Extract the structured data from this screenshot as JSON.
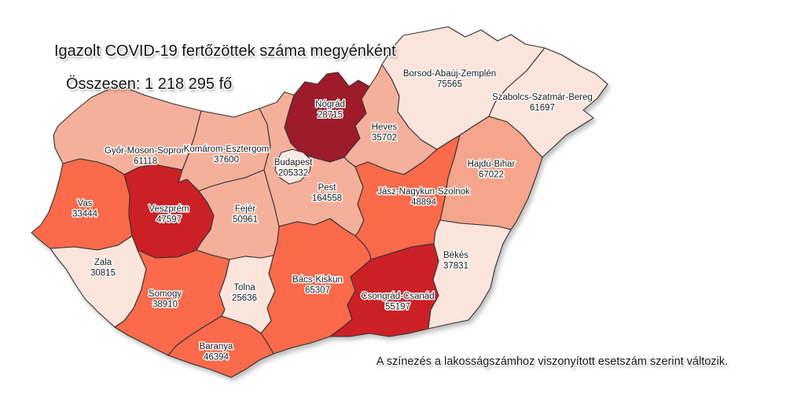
{
  "title": "Igazolt COVID-19 fertőzöttek száma megyénként",
  "total_label": "Összesen: 1 218 295 fő",
  "footnote": "A színezés a lakosságszámhoz viszonyított esetszám szerint változik.",
  "chart_data": {
    "type": "choropleth",
    "region": "Hungary, megyék (counties)",
    "metric": "Igazolt COVID-19 fertőzöttek száma",
    "total_displayed": "1 218 295",
    "legend": "none (color intensity = cases relative to population)",
    "border_color": "#333333",
    "label_color": "#1a1a1a",
    "palette": {
      "t0": "#f9eae4",
      "t1": "#fbe4dc",
      "t2": "#f5b09b",
      "t2b": "#f5a58c",
      "t3": "#fa6a4b",
      "t4": "#cc2027",
      "t5": "#9e1b2c"
    },
    "counties": [
      {
        "id": "gyms",
        "name": "Győr-Moson-Sopron",
        "value": "61118",
        "tier": "t2"
      },
      {
        "id": "ke",
        "name": "Komárom-Esztergom",
        "value": "37600",
        "tier": "t2"
      },
      {
        "id": "vas",
        "name": "Vas",
        "value": "33444",
        "tier": "t3"
      },
      {
        "id": "veszprem",
        "name": "Veszprém",
        "value": "47597",
        "tier": "t4"
      },
      {
        "id": "zala",
        "name": "Zala",
        "value": "30815",
        "tier": "t1"
      },
      {
        "id": "fejer",
        "name": "Fejér",
        "value": "50961",
        "tier": "t2"
      },
      {
        "id": "somogy",
        "name": "Somogy",
        "value": "38910",
        "tier": "t3"
      },
      {
        "id": "tolna",
        "name": "Tolna",
        "value": "25636",
        "tier": "t1"
      },
      {
        "id": "baranya",
        "name": "Baranya",
        "value": "46394",
        "tier": "t3"
      },
      {
        "id": "pest",
        "name": "Pest",
        "value": "164558",
        "tier": "t2"
      },
      {
        "id": "nograd",
        "name": "Nógrád",
        "value": "28715",
        "tier": "t5"
      },
      {
        "id": "heves",
        "name": "Heves",
        "value": "35702",
        "tier": "t2"
      },
      {
        "id": "borsod",
        "name": "Borsod-Abaúj-Zemplén",
        "value": "75565",
        "tier": "t1"
      },
      {
        "id": "szabolcs",
        "name": "Szabolcs-Szatmár-Bereg",
        "value": "61697",
        "tier": "t1"
      },
      {
        "id": "hajdu",
        "name": "Hajdú-Bihar",
        "value": "67022",
        "tier": "t2b"
      },
      {
        "id": "jnsz",
        "name": "Jász-Nagykun-Szolnok",
        "value": "48894",
        "tier": "t3"
      },
      {
        "id": "bacs",
        "name": "Bács-Kiskun",
        "value": "65307",
        "tier": "t3"
      },
      {
        "id": "csongrad",
        "name": "Csongrád-Csanád",
        "value": "55197",
        "tier": "t4"
      },
      {
        "id": "bekes",
        "name": "Békés",
        "value": "37831",
        "tier": "t1"
      },
      {
        "id": "budapest",
        "name": "Budapest",
        "value": "205332",
        "tier": "t0"
      }
    ]
  }
}
